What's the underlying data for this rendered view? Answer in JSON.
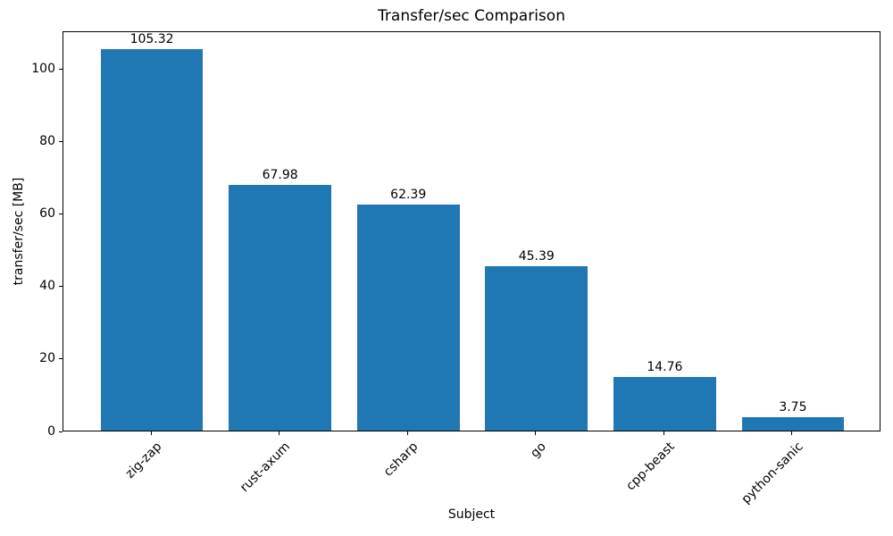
{
  "chart_data": {
    "type": "bar",
    "title": "Transfer/sec Comparison",
    "xlabel": "Subject",
    "ylabel": "transfer/sec [MB]",
    "categories": [
      "zig-zap",
      "rust-axum",
      "csharp",
      "go",
      "cpp-beast",
      "python-sanic"
    ],
    "values": [
      105.32,
      67.98,
      62.39,
      45.39,
      14.76,
      3.75
    ],
    "value_label_decimals": 2,
    "ylim": [
      0,
      110.59
    ],
    "yticks": [
      0,
      20,
      40,
      60,
      80,
      100
    ],
    "bar_color": "#1f77b4",
    "bar_width_fraction": 0.8,
    "xtick_rotation_deg": 45,
    "grid": false,
    "legend_position": "none",
    "frame": "full-box"
  }
}
